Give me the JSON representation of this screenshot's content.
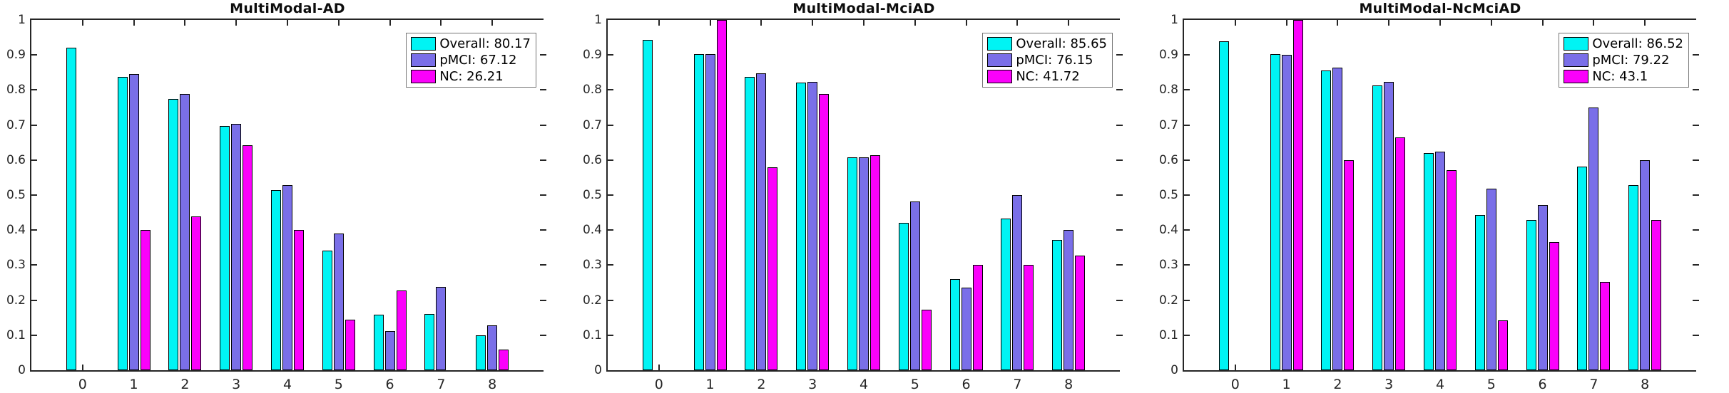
{
  "figure": {
    "background": "#ffffff",
    "axis_color": "#262626",
    "bar_edge_color": "#000000",
    "legend_border_color": "#757575"
  },
  "chart_data": [
    {
      "type": "bar",
      "title": "MultiModal-AD",
      "xlabel": "",
      "ylabel": "",
      "ylim": [
        0,
        1
      ],
      "xlim": [
        -1,
        9
      ],
      "grid": false,
      "legend_position": "top-right",
      "categories": [
        "0",
        "1",
        "2",
        "3",
        "4",
        "5",
        "6",
        "7",
        "8"
      ],
      "y_tick_values": [
        0,
        0.1,
        0.2,
        0.3,
        0.4,
        0.5,
        0.6,
        0.7,
        0.8,
        0.9,
        1
      ],
      "y_tick_labels": [
        "0",
        "0.1",
        "0.2",
        "0.3",
        "0.4",
        "0.5",
        "0.6",
        "0.7",
        "0.8",
        "0.9",
        "1"
      ],
      "series": [
        {
          "name": "Overall",
          "legend_label": "Overall: 80.17",
          "legend_value": 80.17,
          "color": "#00f4f4",
          "values": [
            0.92,
            0.838,
            0.775,
            0.698,
            0.515,
            0.342,
            0.158,
            0.16,
            0.1
          ]
        },
        {
          "name": "pMCI",
          "legend_label": "pMCI: 67.12",
          "legend_value": 67.12,
          "color": "#7a6fe8",
          "values": [
            null,
            0.845,
            0.788,
            0.703,
            0.528,
            0.39,
            0.112,
            0.237,
            0.129
          ]
        },
        {
          "name": "NC",
          "legend_label": "NC: 26.21",
          "legend_value": 26.21,
          "color": "#fb01fb",
          "values": [
            null,
            0.4,
            0.44,
            0.643,
            0.4,
            0.144,
            0.227,
            null,
            0.058
          ]
        }
      ]
    },
    {
      "type": "bar",
      "title": "MultiModal-MciAD",
      "xlabel": "",
      "ylabel": "",
      "ylim": [
        0,
        1
      ],
      "xlim": [
        -1,
        9
      ],
      "grid": false,
      "legend_position": "top-right",
      "categories": [
        "0",
        "1",
        "2",
        "3",
        "4",
        "5",
        "6",
        "7",
        "8"
      ],
      "y_tick_values": [
        0,
        0.1,
        0.2,
        0.3,
        0.4,
        0.5,
        0.6,
        0.7,
        0.8,
        0.9,
        1
      ],
      "y_tick_labels": [
        "0",
        "0.1",
        "0.2",
        "0.3",
        "0.4",
        "0.5",
        "0.6",
        "0.7",
        "0.8",
        "0.9",
        "1"
      ],
      "series": [
        {
          "name": "Overall",
          "legend_label": "Overall: 85.65",
          "legend_value": 85.65,
          "color": "#00f4f4",
          "values": [
            0.943,
            0.902,
            0.838,
            0.821,
            0.608,
            0.421,
            0.26,
            0.433,
            0.371
          ]
        },
        {
          "name": "pMCI",
          "legend_label": "pMCI: 76.15",
          "legend_value": 76.15,
          "color": "#7a6fe8",
          "values": [
            null,
            0.902,
            0.848,
            0.823,
            0.608,
            0.481,
            0.235,
            0.5,
            0.4
          ]
        },
        {
          "name": "NC",
          "legend_label": "NC: 41.72",
          "legend_value": 41.72,
          "color": "#fb01fb",
          "values": [
            null,
            1.0,
            0.58,
            0.789,
            0.614,
            0.172,
            0.3,
            0.3,
            0.328
          ]
        }
      ]
    },
    {
      "type": "bar",
      "title": "MultiModal-NcMciAD",
      "xlabel": "",
      "ylabel": "",
      "ylim": [
        0,
        1
      ],
      "xlim": [
        -1,
        9
      ],
      "grid": false,
      "legend_position": "top-right",
      "categories": [
        "0",
        "1",
        "2",
        "3",
        "4",
        "5",
        "6",
        "7",
        "8"
      ],
      "y_tick_values": [
        0,
        0.1,
        0.2,
        0.3,
        0.4,
        0.5,
        0.6,
        0.7,
        0.8,
        0.9,
        1
      ],
      "y_tick_labels": [
        "0",
        "0.1",
        "0.2",
        "0.3",
        "0.4",
        "0.5",
        "0.6",
        "0.7",
        "0.8",
        "0.9",
        "1"
      ],
      "series": [
        {
          "name": "Overall",
          "legend_label": "Overall: 86.52",
          "legend_value": 86.52,
          "color": "#00f4f4",
          "values": [
            0.94,
            0.902,
            0.855,
            0.812,
            0.62,
            0.444,
            0.428,
            0.582,
            0.528
          ]
        },
        {
          "name": "pMCI",
          "legend_label": "pMCI: 79.22",
          "legend_value": 79.22,
          "color": "#7a6fe8",
          "values": [
            null,
            0.9,
            0.864,
            0.823,
            0.625,
            0.518,
            0.471,
            0.75,
            0.6
          ]
        },
        {
          "name": "NC",
          "legend_label": "NC: 43.1",
          "legend_value": 43.1,
          "color": "#fb01fb",
          "values": [
            null,
            1.0,
            0.6,
            0.665,
            0.571,
            0.143,
            0.365,
            0.252,
            0.428
          ]
        }
      ]
    }
  ]
}
